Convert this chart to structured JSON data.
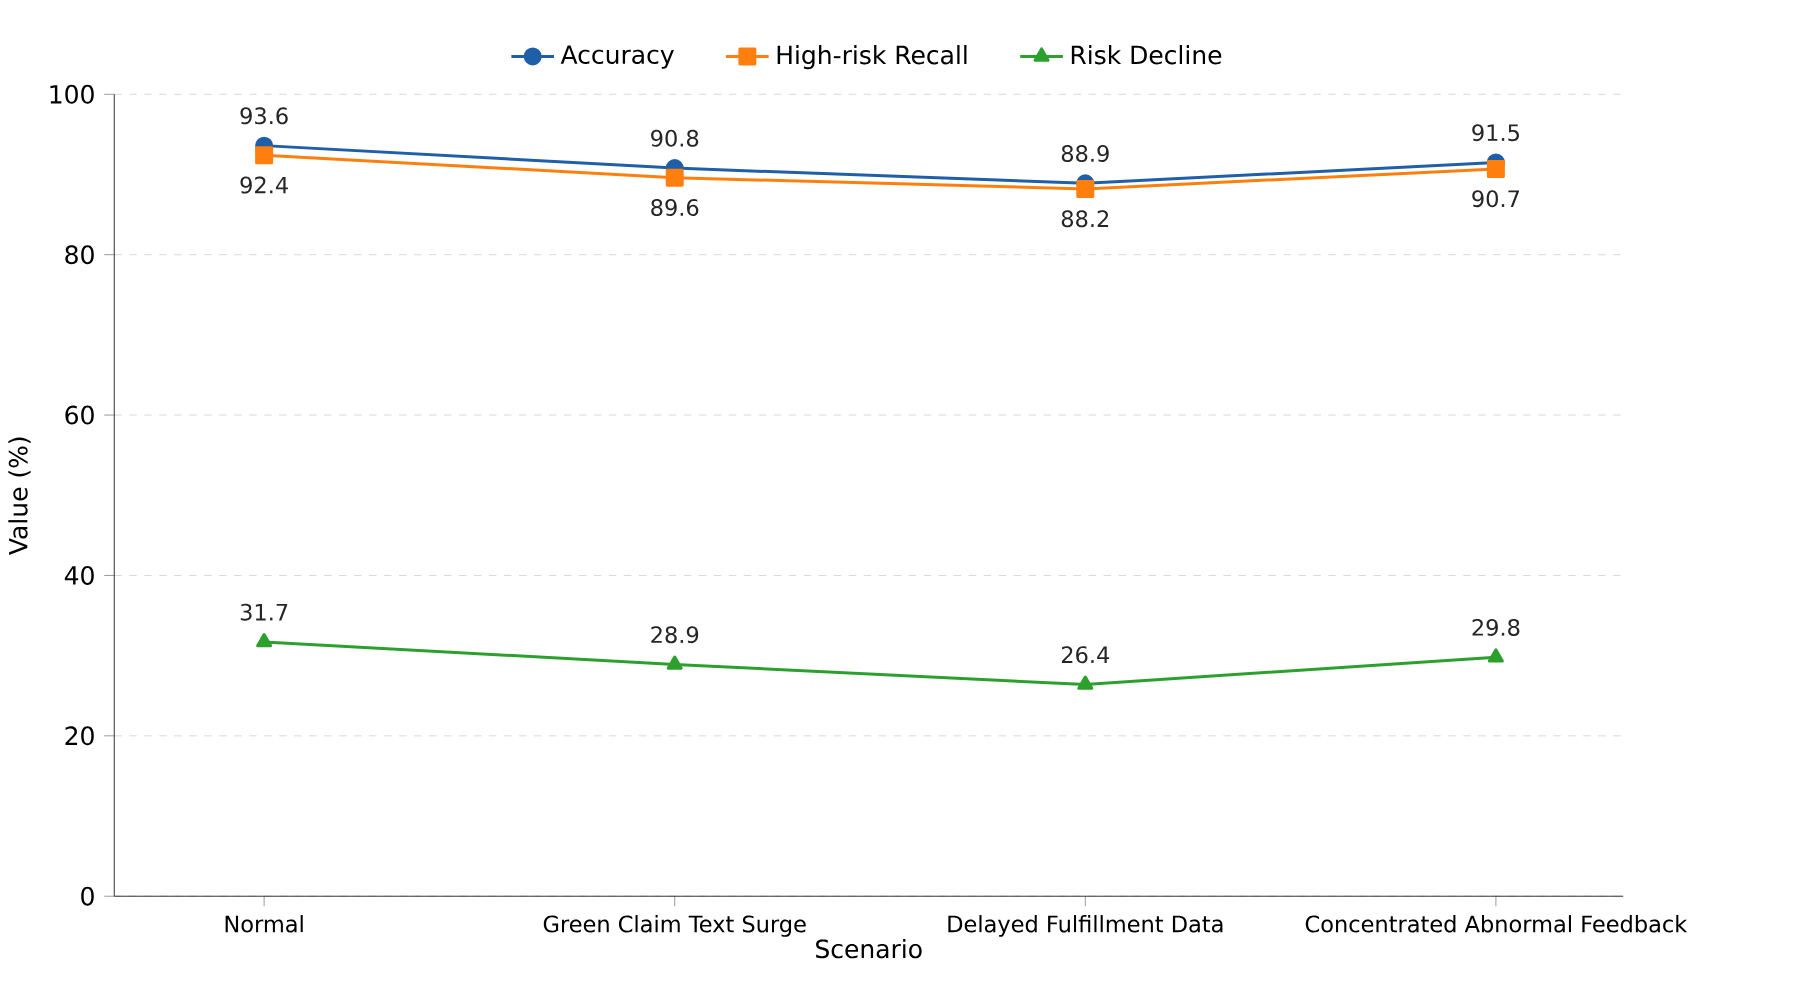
{
  "chart_data": {
    "type": "line",
    "xlabel": "Scenario",
    "ylabel": "Value (%)",
    "categories": [
      "Normal",
      "Green Claim Text Surge",
      "Delayed Fulfillment Data",
      "Concentrated Abnormal Feedback"
    ],
    "series": [
      {
        "name": "Accuracy",
        "color": "#1f5fa8",
        "marker": "circle",
        "values": [
          93.6,
          90.8,
          88.9,
          91.5
        ]
      },
      {
        "name": "High-risk Recall",
        "color": "#ff7f0e",
        "marker": "square",
        "values": [
          92.4,
          89.6,
          88.2,
          90.7
        ]
      },
      {
        "name": "Risk Decline",
        "color": "#2ca02c",
        "marker": "triangle",
        "values": [
          31.7,
          28.9,
          26.4,
          29.8
        ]
      }
    ],
    "ylim": [
      0,
      100
    ],
    "yticks": [
      0,
      20,
      40,
      60,
      80,
      100
    ],
    "grid": "y",
    "legend": "top",
    "data_labels": true,
    "line_style": "solid"
  }
}
